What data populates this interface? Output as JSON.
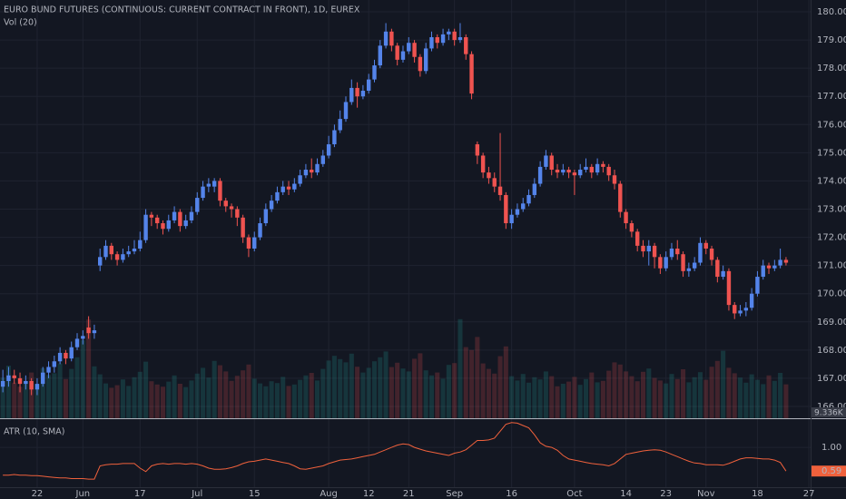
{
  "chart_data": {
    "type": "candlestick",
    "title": "EURO BUND FUTURES (CONTINUOUS: CURRENT CONTRACT IN FRONT), 1D, EUREX",
    "volume_title": "Vol (20)",
    "up_color": "#5484ea",
    "down_color": "#ef5350",
    "grid": true,
    "xlim": [
      -0.5,
      141.3
    ],
    "xticks": [
      {
        "value": 6,
        "label": "22"
      },
      {
        "value": 14,
        "label": "Jun"
      },
      {
        "value": 24,
        "label": "17"
      },
      {
        "value": 34,
        "label": "Jul"
      },
      {
        "value": 44,
        "label": "15"
      },
      {
        "value": 57,
        "label": "Aug"
      },
      {
        "value": 64,
        "label": "12"
      },
      {
        "value": 71,
        "label": "21"
      },
      {
        "value": 79,
        "label": "Sep"
      },
      {
        "value": 89,
        "label": "16"
      },
      {
        "value": 100,
        "label": "Oct"
      },
      {
        "value": 109,
        "label": "14"
      },
      {
        "value": 116,
        "label": "23"
      },
      {
        "value": 123,
        "label": "Nov"
      },
      {
        "value": 132,
        "label": "18"
      },
      {
        "value": 141,
        "label": "27"
      }
    ],
    "ylim": [
      165.58,
      180.42
    ],
    "yticks": [
      {
        "value": 166,
        "label": "166.00"
      },
      {
        "value": 167,
        "label": "167.00"
      },
      {
        "value": 168,
        "label": "168.00"
      },
      {
        "value": 169,
        "label": "169.00"
      },
      {
        "value": 170,
        "label": "170.00"
      },
      {
        "value": 171,
        "label": "171.00"
      },
      {
        "value": 172,
        "label": "172.00"
      },
      {
        "value": 173,
        "label": "173.00"
      },
      {
        "value": 174,
        "label": "174.00"
      },
      {
        "value": 175,
        "label": "175.00"
      },
      {
        "value": 176,
        "label": "176.00"
      },
      {
        "value": 177,
        "label": "177.00"
      },
      {
        "value": 178,
        "label": "178.00"
      },
      {
        "value": 179,
        "label": "179.00"
      },
      {
        "value": 180,
        "label": "180.00"
      }
    ],
    "ohlc": [
      [
        166.7,
        167.3,
        166.5,
        166.9
      ],
      [
        166.9,
        167.4,
        166.7,
        167.1
      ],
      [
        167.1,
        167.3,
        166.8,
        167.0
      ],
      [
        167.0,
        167.2,
        166.5,
        166.8
      ],
      [
        166.8,
        167.1,
        166.6,
        166.9
      ],
      [
        166.9,
        167.0,
        166.4,
        166.6
      ],
      [
        166.6,
        167.0,
        166.4,
        166.8
      ],
      [
        166.8,
        167.4,
        166.7,
        167.2
      ],
      [
        167.2,
        167.6,
        167.0,
        167.4
      ],
      [
        167.4,
        167.8,
        167.2,
        167.6
      ],
      [
        167.6,
        168.1,
        167.5,
        167.9
      ],
      [
        167.9,
        168.0,
        167.5,
        167.7
      ],
      [
        167.7,
        168.3,
        167.6,
        168.1
      ],
      [
        168.1,
        168.6,
        168.0,
        168.4
      ],
      [
        168.4,
        168.7,
        168.2,
        168.5
      ],
      [
        168.8,
        169.2,
        168.4,
        168.6
      ],
      [
        168.6,
        168.9,
        168.4,
        168.7
      ],
      [
        171.0,
        171.6,
        170.8,
        171.3
      ],
      [
        171.3,
        171.9,
        171.2,
        171.7
      ],
      [
        171.7,
        171.8,
        171.2,
        171.4
      ],
      [
        171.4,
        171.5,
        171.0,
        171.2
      ],
      [
        171.2,
        171.6,
        171.1,
        171.4
      ],
      [
        171.4,
        171.7,
        171.3,
        171.5
      ],
      [
        171.5,
        171.9,
        171.4,
        171.6
      ],
      [
        171.6,
        172.2,
        171.5,
        171.9
      ],
      [
        171.9,
        173.0,
        171.8,
        172.8
      ],
      [
        172.8,
        172.9,
        172.4,
        172.7
      ],
      [
        172.7,
        172.8,
        172.3,
        172.5
      ],
      [
        172.5,
        172.6,
        172.1,
        172.3
      ],
      [
        172.3,
        172.8,
        172.2,
        172.6
      ],
      [
        172.6,
        173.1,
        172.5,
        172.9
      ],
      [
        172.9,
        173.0,
        172.2,
        172.4
      ],
      [
        172.4,
        172.8,
        172.3,
        172.6
      ],
      [
        172.6,
        173.1,
        172.5,
        172.9
      ],
      [
        172.9,
        173.6,
        172.8,
        173.4
      ],
      [
        173.4,
        174.0,
        173.3,
        173.8
      ],
      [
        173.8,
        174.1,
        173.6,
        173.9
      ],
      [
        173.8,
        174.1,
        173.6,
        174.0
      ],
      [
        174.0,
        174.1,
        173.1,
        173.3
      ],
      [
        173.3,
        173.4,
        172.9,
        173.1
      ],
      [
        173.1,
        173.2,
        172.7,
        173.0
      ],
      [
        173.0,
        173.1,
        172.4,
        172.7
      ],
      [
        172.7,
        172.8,
        171.8,
        172.0
      ],
      [
        172.0,
        172.1,
        171.3,
        171.6
      ],
      [
        171.6,
        172.2,
        171.5,
        172.0
      ],
      [
        172.0,
        172.7,
        171.9,
        172.5
      ],
      [
        172.5,
        173.2,
        172.4,
        173.0
      ],
      [
        173.0,
        173.5,
        172.9,
        173.3
      ],
      [
        173.3,
        173.8,
        173.2,
        173.6
      ],
      [
        173.6,
        174.0,
        173.5,
        173.8
      ],
      [
        173.8,
        174.0,
        173.5,
        173.7
      ],
      [
        173.7,
        174.1,
        173.6,
        173.9
      ],
      [
        173.9,
        174.4,
        173.8,
        174.2
      ],
      [
        174.2,
        174.6,
        174.1,
        174.4
      ],
      [
        174.4,
        174.8,
        174.1,
        174.3
      ],
      [
        174.3,
        174.8,
        174.2,
        174.6
      ],
      [
        174.6,
        175.1,
        174.5,
        174.9
      ],
      [
        174.9,
        175.6,
        174.8,
        175.3
      ],
      [
        175.3,
        176.0,
        175.2,
        175.8
      ],
      [
        175.8,
        176.5,
        175.7,
        176.2
      ],
      [
        176.2,
        177.0,
        176.1,
        176.8
      ],
      [
        176.8,
        177.6,
        176.7,
        177.3
      ],
      [
        177.3,
        177.5,
        176.6,
        177.0
      ],
      [
        177.0,
        177.4,
        176.9,
        177.2
      ],
      [
        177.2,
        177.8,
        177.1,
        177.6
      ],
      [
        177.6,
        178.3,
        177.5,
        178.1
      ],
      [
        178.1,
        179.0,
        178.0,
        178.8
      ],
      [
        178.8,
        179.6,
        178.7,
        179.3
      ],
      [
        179.3,
        179.4,
        178.6,
        178.8
      ],
      [
        178.8,
        178.9,
        178.1,
        178.3
      ],
      [
        178.3,
        178.8,
        178.2,
        178.6
      ],
      [
        178.6,
        179.1,
        178.5,
        178.9
      ],
      [
        178.9,
        179.0,
        178.2,
        178.4
      ],
      [
        178.4,
        178.5,
        177.7,
        177.9
      ],
      [
        177.9,
        178.9,
        177.8,
        178.7
      ],
      [
        178.7,
        179.3,
        178.6,
        179.1
      ],
      [
        179.1,
        179.2,
        178.7,
        178.9
      ],
      [
        178.9,
        179.4,
        178.8,
        179.2
      ],
      [
        179.2,
        179.4,
        179.0,
        179.3
      ],
      [
        179.3,
        179.4,
        178.8,
        179.0
      ],
      [
        179.0,
        179.6,
        178.9,
        179.1
      ],
      [
        179.1,
        179.2,
        178.3,
        178.5
      ],
      [
        178.5,
        178.6,
        176.9,
        177.1
      ],
      [
        175.3,
        175.4,
        174.6,
        174.9
      ],
      [
        174.9,
        175.0,
        174.1,
        174.3
      ],
      [
        174.3,
        174.5,
        173.9,
        174.1
      ],
      [
        174.1,
        174.3,
        173.6,
        173.8
      ],
      [
        173.8,
        175.7,
        173.3,
        173.5
      ],
      [
        173.5,
        173.6,
        172.3,
        172.5
      ],
      [
        172.5,
        173.0,
        172.3,
        172.8
      ],
      [
        172.8,
        173.2,
        172.7,
        173.0
      ],
      [
        173.0,
        173.4,
        172.9,
        173.2
      ],
      [
        173.2,
        173.7,
        173.1,
        173.5
      ],
      [
        173.5,
        174.1,
        173.4,
        173.9
      ],
      [
        173.9,
        174.7,
        173.8,
        174.5
      ],
      [
        174.5,
        175.1,
        174.4,
        174.9
      ],
      [
        174.9,
        175.0,
        174.2,
        174.4
      ],
      [
        174.4,
        174.6,
        174.1,
        174.3
      ],
      [
        174.3,
        174.6,
        174.2,
        174.4
      ],
      [
        174.4,
        174.5,
        174.1,
        174.3
      ],
      [
        174.3,
        174.4,
        173.5,
        174.2
      ],
      [
        174.2,
        174.6,
        174.1,
        174.4
      ],
      [
        174.4,
        174.8,
        174.3,
        174.5
      ],
      [
        174.5,
        174.6,
        174.1,
        174.3
      ],
      [
        174.3,
        174.8,
        174.2,
        174.6
      ],
      [
        174.6,
        174.7,
        174.3,
        174.5
      ],
      [
        174.5,
        174.6,
        174.0,
        174.2
      ],
      [
        174.2,
        174.4,
        173.7,
        173.9
      ],
      [
        173.9,
        174.0,
        172.7,
        172.9
      ],
      [
        172.9,
        173.0,
        172.3,
        172.5
      ],
      [
        172.5,
        172.6,
        172.0,
        172.2
      ],
      [
        172.2,
        172.3,
        171.5,
        171.7
      ],
      [
        171.7,
        171.9,
        171.3,
        171.5
      ],
      [
        171.5,
        171.9,
        171.0,
        171.7
      ],
      [
        171.7,
        171.8,
        170.9,
        171.3
      ],
      [
        171.3,
        171.4,
        170.7,
        170.9
      ],
      [
        170.9,
        171.5,
        170.8,
        171.3
      ],
      [
        171.3,
        171.8,
        171.2,
        171.6
      ],
      [
        171.6,
        171.9,
        171.2,
        171.4
      ],
      [
        171.4,
        171.5,
        170.6,
        170.8
      ],
      [
        170.8,
        171.1,
        170.6,
        170.9
      ],
      [
        170.9,
        171.3,
        170.8,
        171.1
      ],
      [
        171.1,
        172.0,
        171.0,
        171.8
      ],
      [
        171.8,
        171.9,
        171.4,
        171.6
      ],
      [
        171.6,
        171.7,
        171.0,
        171.2
      ],
      [
        171.2,
        171.3,
        170.4,
        170.6
      ],
      [
        170.6,
        171.0,
        170.5,
        170.8
      ],
      [
        170.8,
        170.9,
        169.4,
        169.6
      ],
      [
        169.6,
        169.7,
        169.1,
        169.3
      ],
      [
        169.3,
        169.6,
        169.2,
        169.4
      ],
      [
        169.4,
        169.7,
        169.2,
        169.5
      ],
      [
        169.5,
        170.2,
        169.4,
        170.0
      ],
      [
        170.0,
        170.8,
        169.9,
        170.6
      ],
      [
        170.6,
        171.2,
        170.5,
        171.0
      ],
      [
        171.0,
        171.1,
        170.7,
        170.9
      ],
      [
        170.9,
        171.2,
        170.8,
        171.0
      ],
      [
        171.0,
        171.6,
        170.9,
        171.2
      ],
      [
        171.2,
        171.3,
        171.0,
        171.1
      ]
    ],
    "volume_lim": [
      0,
      40000
    ],
    "volume": [
      11200,
      14500,
      9800,
      8700,
      10300,
      12600,
      9400,
      13800,
      11900,
      12400,
      15100,
      10800,
      13600,
      16800,
      21500,
      27200,
      14300,
      12100,
      9600,
      8400,
      9100,
      10700,
      8900,
      11300,
      12800,
      15600,
      10200,
      9300,
      8700,
      10100,
      11800,
      9500,
      8600,
      10400,
      12300,
      13900,
      11200,
      15800,
      14600,
      12900,
      10300,
      11700,
      13200,
      14800,
      10900,
      9600,
      8800,
      10200,
      9700,
      11400,
      8900,
      9300,
      10600,
      11800,
      12500,
      10400,
      13600,
      15900,
      17200,
      16300,
      15400,
      17800,
      14200,
      12600,
      13900,
      15700,
      16800,
      18400,
      14100,
      15300,
      13700,
      12900,
      16400,
      17900,
      13200,
      11800,
      12600,
      10900,
      14700,
      15200,
      27300,
      19600,
      18800,
      22400,
      15100,
      13600,
      12300,
      17100,
      19800,
      11600,
      10400,
      12200,
      9800,
      11300,
      10700,
      12900,
      11600,
      8800,
      9500,
      10100,
      11400,
      9200,
      10800,
      12600,
      9900,
      10300,
      13100,
      15400,
      14800,
      12900,
      11600,
      10200,
      12800,
      13700,
      11100,
      10400,
      9600,
      12200,
      10800,
      13500,
      9900,
      11300,
      12700,
      10600,
      14200,
      15800,
      18600,
      13900,
      12400,
      11200,
      9800,
      12100,
      10600,
      9400,
      11800,
      10300,
      12500,
      9336
    ],
    "volume_marker": {
      "value": 9336,
      "label": "9.336K"
    },
    "indicator": {
      "title": "ATR (10, SMA)",
      "color": "#f0613c",
      "ylim": [
        0.31,
        1.49
      ],
      "yticks": [
        {
          "value": 1,
          "label": "1.00"
        }
      ],
      "marker": {
        "value": 0.59,
        "label": "0.59"
      },
      "values": [
        0.52,
        0.52,
        0.53,
        0.52,
        0.52,
        0.51,
        0.51,
        0.5,
        0.49,
        0.48,
        0.47,
        0.47,
        0.46,
        0.46,
        0.46,
        0.45,
        0.45,
        0.68,
        0.7,
        0.71,
        0.71,
        0.72,
        0.72,
        0.72,
        0.64,
        0.58,
        0.68,
        0.71,
        0.72,
        0.71,
        0.72,
        0.72,
        0.71,
        0.72,
        0.71,
        0.68,
        0.64,
        0.62,
        0.62,
        0.63,
        0.65,
        0.68,
        0.72,
        0.75,
        0.76,
        0.78,
        0.8,
        0.78,
        0.76,
        0.74,
        0.72,
        0.68,
        0.63,
        0.62,
        0.64,
        0.66,
        0.68,
        0.72,
        0.75,
        0.78,
        0.79,
        0.8,
        0.82,
        0.84,
        0.86,
        0.88,
        0.92,
        0.96,
        1.0,
        1.04,
        1.06,
        1.05,
        1.0,
        0.97,
        0.94,
        0.92,
        0.9,
        0.88,
        0.86,
        0.9,
        0.92,
        0.96,
        1.04,
        1.12,
        1.12,
        1.13,
        1.16,
        1.28,
        1.4,
        1.43,
        1.42,
        1.38,
        1.34,
        1.22,
        1.08,
        1.02,
        1.0,
        0.95,
        0.86,
        0.8,
        0.78,
        0.76,
        0.74,
        0.72,
        0.71,
        0.7,
        0.68,
        0.72,
        0.8,
        0.88,
        0.9,
        0.92,
        0.94,
        0.95,
        0.96,
        0.95,
        0.92,
        0.88,
        0.84,
        0.8,
        0.76,
        0.73,
        0.72,
        0.7,
        0.7,
        0.7,
        0.69,
        0.72,
        0.76,
        0.8,
        0.82,
        0.82,
        0.81,
        0.8,
        0.8,
        0.78,
        0.74,
        0.59
      ]
    }
  }
}
